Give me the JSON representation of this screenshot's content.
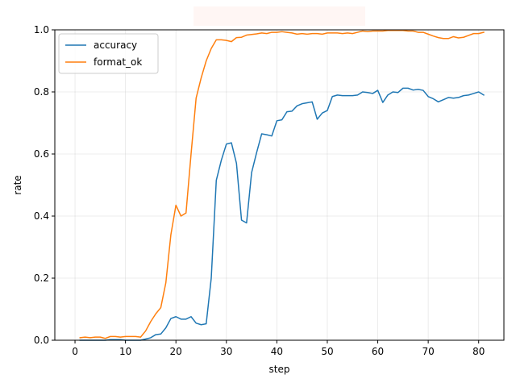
{
  "chart_data": {
    "type": "line",
    "title": "",
    "xlabel": "step",
    "ylabel": "rate",
    "xlim": [
      -4,
      85
    ],
    "ylim": [
      0,
      1.0
    ],
    "xticks": [
      0,
      10,
      20,
      30,
      40,
      50,
      60,
      70,
      80
    ],
    "yticks": [
      0.0,
      0.2,
      0.4,
      0.6,
      0.8,
      1.0
    ],
    "xtick_labels": [
      "0",
      "10",
      "20",
      "30",
      "40",
      "50",
      "60",
      "70",
      "80"
    ],
    "ytick_labels": [
      "0.0",
      "0.2",
      "0.4",
      "0.6",
      "0.8",
      "1.0"
    ],
    "grid": true,
    "legend_position": "top-left",
    "x": [
      1,
      2,
      3,
      4,
      5,
      6,
      7,
      8,
      9,
      10,
      11,
      12,
      13,
      14,
      15,
      16,
      17,
      18,
      19,
      20,
      21,
      22,
      23,
      24,
      25,
      26,
      27,
      28,
      29,
      30,
      31,
      32,
      33,
      34,
      35,
      36,
      37,
      38,
      39,
      40,
      41,
      42,
      43,
      44,
      45,
      46,
      47,
      48,
      49,
      50,
      51,
      52,
      53,
      54,
      55,
      56,
      57,
      58,
      59,
      60,
      61,
      62,
      63,
      64,
      65,
      66,
      67,
      68,
      69,
      70,
      71,
      72,
      73,
      74,
      75,
      76,
      77,
      78,
      79,
      80,
      81
    ],
    "series": [
      {
        "name": "accuracy",
        "color": "#1f77b4",
        "values": [
          0.0,
          0.0,
          0.0,
          0.0,
          0.0,
          0.0,
          0.002,
          0.002,
          0.002,
          0.0,
          0.0,
          0.0,
          0.0,
          0.004,
          0.008,
          0.018,
          0.02,
          0.04,
          0.07,
          0.076,
          0.068,
          0.068,
          0.076,
          0.055,
          0.05,
          0.053,
          0.2,
          0.515,
          0.58,
          0.632,
          0.636,
          0.57,
          0.387,
          0.378,
          0.54,
          0.605,
          0.665,
          0.662,
          0.658,
          0.707,
          0.71,
          0.736,
          0.738,
          0.755,
          0.762,
          0.765,
          0.768,
          0.712,
          0.732,
          0.74,
          0.785,
          0.79,
          0.788,
          0.788,
          0.788,
          0.79,
          0.8,
          0.798,
          0.795,
          0.805,
          0.766,
          0.79,
          0.8,
          0.798,
          0.812,
          0.812,
          0.806,
          0.808,
          0.805,
          0.785,
          0.778,
          0.768,
          0.775,
          0.782,
          0.78,
          0.782,
          0.788,
          0.79,
          0.795,
          0.8,
          0.79
        ]
      },
      {
        "name": "format_ok",
        "color": "#ff7f0e",
        "values": [
          0.008,
          0.01,
          0.008,
          0.01,
          0.01,
          0.006,
          0.012,
          0.012,
          0.01,
          0.012,
          0.012,
          0.012,
          0.01,
          0.03,
          0.06,
          0.085,
          0.105,
          0.185,
          0.34,
          0.435,
          0.4,
          0.41,
          0.6,
          0.78,
          0.845,
          0.9,
          0.94,
          0.968,
          0.968,
          0.966,
          0.962,
          0.975,
          0.976,
          0.983,
          0.985,
          0.987,
          0.99,
          0.988,
          0.992,
          0.992,
          0.994,
          0.992,
          0.99,
          0.986,
          0.988,
          0.986,
          0.988,
          0.988,
          0.986,
          0.99,
          0.99,
          0.99,
          0.988,
          0.99,
          0.988,
          0.992,
          0.996,
          0.994,
          0.996,
          0.996,
          0.996,
          0.998,
          0.998,
          0.998,
          0.998,
          0.996,
          0.996,
          0.992,
          0.992,
          0.986,
          0.98,
          0.975,
          0.972,
          0.972,
          0.978,
          0.974,
          0.976,
          0.982,
          0.988,
          0.988,
          0.992
        ]
      }
    ]
  }
}
